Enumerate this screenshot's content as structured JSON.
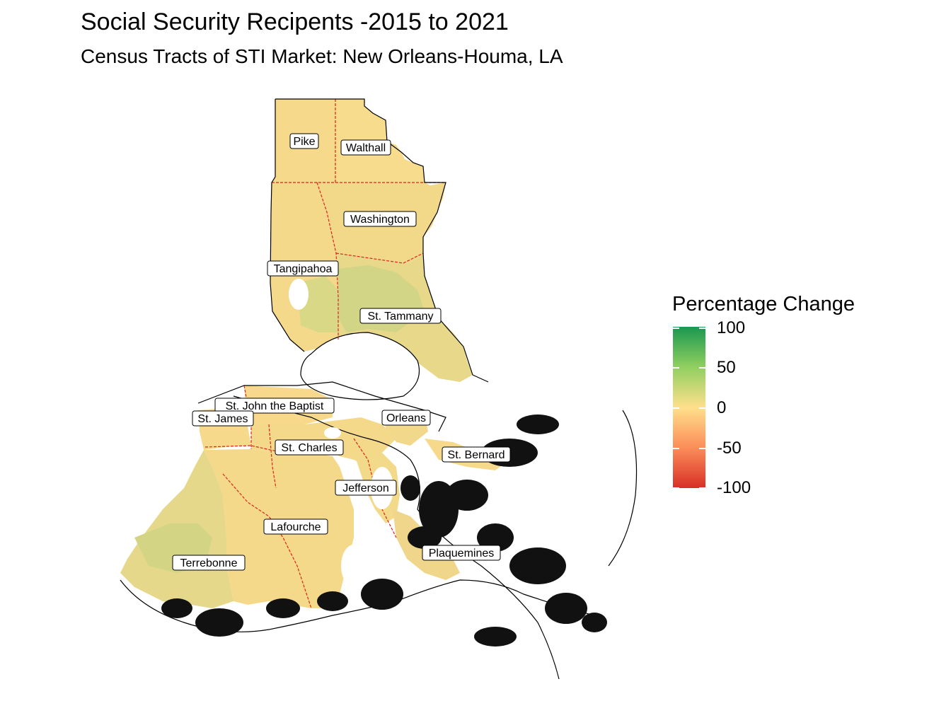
{
  "title": "Social Security Recipents -2015 to 2021",
  "subtitle": "Census Tracts of STI Market: New Orleans-Houma, LA",
  "legend": {
    "title": "Percentage Change",
    "ticks": [
      "100",
      "50",
      "0",
      "-50",
      "-100"
    ],
    "range": [
      -100,
      100
    ],
    "colors": [
      "#d73027",
      "#fc8d59",
      "#fee08b",
      "#91cf60",
      "#1a9850"
    ]
  },
  "parishes": [
    "Pike",
    "Walthall",
    "Washington",
    "Tangipahoa",
    "St. Tammany",
    "St. John the Baptist",
    "St. James",
    "Orleans",
    "St. Charles",
    "St. Bernard",
    "Jefferson",
    "Lafourche",
    "Plaquemines",
    "Terrebonne"
  ],
  "colors": {
    "tract_fill": "#f7d98b",
    "tract_positive": "#d8d787",
    "boundary": "#d9261c",
    "outline": "#000000"
  }
}
